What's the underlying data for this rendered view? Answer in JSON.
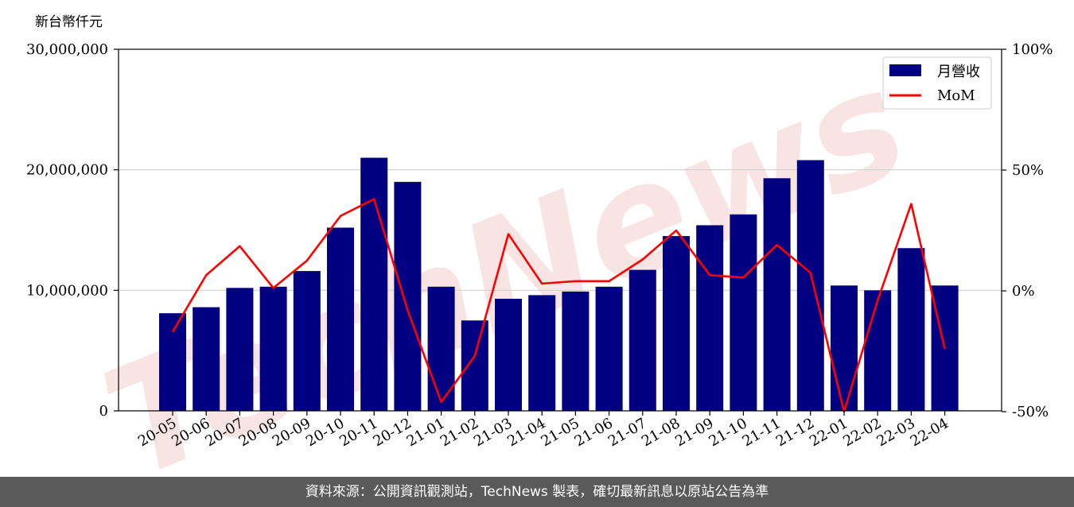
{
  "footer": {
    "text": "資料來源：公開資訊觀測站，TechNews 製表，確切最新訊息以原站公告為準"
  },
  "watermark": {
    "text": "TechNews",
    "color": "#f7d9d9"
  },
  "chart_data": {
    "type": "bar",
    "ylabel": "新台幣仟元",
    "ylim": [
      0,
      30000000
    ],
    "yticks": [
      "0",
      "10,000,000",
      "20,000,000",
      "30,000,000"
    ],
    "y2lim": [
      -55,
      100
    ],
    "y2ticks": [
      "-50%",
      "0%",
      "50%",
      "100%"
    ],
    "grid": "horizontal",
    "legend_position": "top-right",
    "colors": {
      "bar": "#000080",
      "line": "#ff0000"
    },
    "categories": [
      "20-05",
      "20-06",
      "20-07",
      "20-08",
      "20-09",
      "20-10",
      "20-11",
      "20-12",
      "21-01",
      "21-02",
      "21-03",
      "21-04",
      "21-05",
      "21-06",
      "21-07",
      "21-08",
      "21-09",
      "21-10",
      "21-11",
      "21-12",
      "22-01",
      "22-02",
      "22-03",
      "22-04"
    ],
    "series": [
      {
        "name": "月營收",
        "type": "bar",
        "axis": "left",
        "values": [
          8100000,
          8600000,
          10200000,
          10300000,
          11600000,
          15200000,
          21000000,
          19000000,
          10300000,
          7500000,
          9300000,
          9600000,
          9900000,
          10300000,
          11700000,
          14500000,
          15400000,
          16300000,
          19300000,
          20800000,
          10400000,
          10000000,
          13500000,
          10400000
        ]
      },
      {
        "name": "MoM",
        "type": "line",
        "axis": "right",
        "values": [
          -17,
          6.5,
          18.5,
          1.2,
          12.5,
          31,
          38,
          -8,
          -46,
          -27,
          23.5,
          3,
          4,
          4,
          13,
          25,
          6.5,
          5.5,
          19,
          7.5,
          -50,
          -4,
          36,
          -24
        ]
      }
    ]
  }
}
